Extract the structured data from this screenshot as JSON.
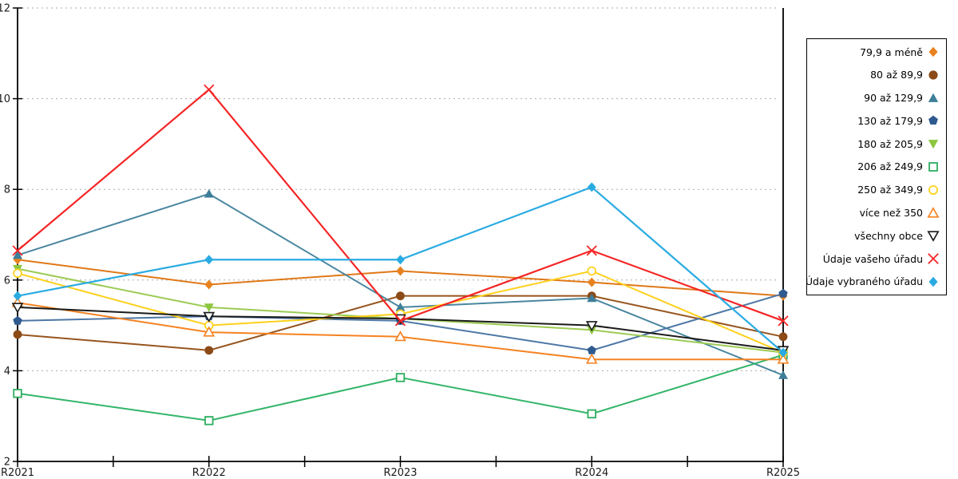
{
  "chart_data": {
    "type": "line",
    "title": "",
    "xlabel": "",
    "ylabel": "",
    "categories": [
      "R2021",
      "R2022",
      "R2023",
      "R2024",
      "R2025"
    ],
    "ylim": [
      2,
      12
    ],
    "y_ticks": [
      2,
      4,
      6,
      8,
      10,
      12
    ],
    "grid_values": [
      4,
      6,
      8,
      10,
      12
    ],
    "grid": true,
    "legend_position": "right",
    "axis_color": "#000000",
    "grid_color": "#aaaaaa",
    "series": [
      {
        "name": "79,9 a méně",
        "marker": "diamond",
        "fill": "solid",
        "color": "#e8821e",
        "line_color": "#e07818",
        "values": [
          6.45,
          5.9,
          6.2,
          5.95,
          5.65
        ]
      },
      {
        "name": "80 až 89,9",
        "marker": "circle",
        "fill": "solid",
        "color": "#8b4a16",
        "line_color": "#96551e",
        "values": [
          4.8,
          4.45,
          5.65,
          5.65,
          4.75
        ]
      },
      {
        "name": "90 až 129,9",
        "marker": "triangle-up",
        "fill": "solid",
        "color": "#3d7e99",
        "line_color": "#4a87a0",
        "values": [
          6.55,
          7.9,
          5.4,
          5.6,
          3.9
        ]
      },
      {
        "name": "130 až 179,9",
        "marker": "pentagon",
        "fill": "solid",
        "color": "#2e5a8f",
        "line_color": "#4c77a6",
        "values": [
          5.1,
          5.2,
          5.1,
          4.45,
          5.7
        ]
      },
      {
        "name": "180 až 205,9",
        "marker": "triangle-down",
        "fill": "solid",
        "color": "#8dc63f",
        "line_color": "#9ccb54",
        "values": [
          6.25,
          5.4,
          5.15,
          4.9,
          4.4
        ]
      },
      {
        "name": "206 až 249,9",
        "marker": "square",
        "fill": "open",
        "color": "#2eae60",
        "line_color": "#33b56a",
        "values": [
          3.5,
          2.9,
          3.85,
          3.05,
          4.35
        ]
      },
      {
        "name": "250 až 349,9",
        "marker": "circle",
        "fill": "open",
        "color": "#ffd21e",
        "line_color": "#fdd01c",
        "values": [
          6.15,
          5.0,
          5.25,
          6.2,
          4.4
        ]
      },
      {
        "name": "více než 350",
        "marker": "triangle-up",
        "fill": "open",
        "color": "#f58220",
        "line_color": "#f58220",
        "values": [
          5.5,
          4.85,
          4.75,
          4.25,
          4.25
        ]
      },
      {
        "name": "všechny obce",
        "marker": "triangle-down",
        "fill": "open",
        "color": "#1a1a1a",
        "line_color": "#1a1a1a",
        "values": [
          5.4,
          5.2,
          5.15,
          5.0,
          4.45
        ]
      },
      {
        "name": "Údaje vašeho úřadu",
        "marker": "x",
        "fill": "line",
        "color": "#f52525",
        "line_color": "#f52525",
        "values": [
          6.65,
          10.2,
          5.1,
          6.65,
          5.1
        ]
      },
      {
        "name": "Údaje vybraného úřadu",
        "marker": "diamond",
        "fill": "solid",
        "color": "#29abe2",
        "line_color": "#29abe2",
        "values": [
          5.65,
          6.45,
          6.45,
          8.05,
          4.4
        ]
      }
    ]
  }
}
